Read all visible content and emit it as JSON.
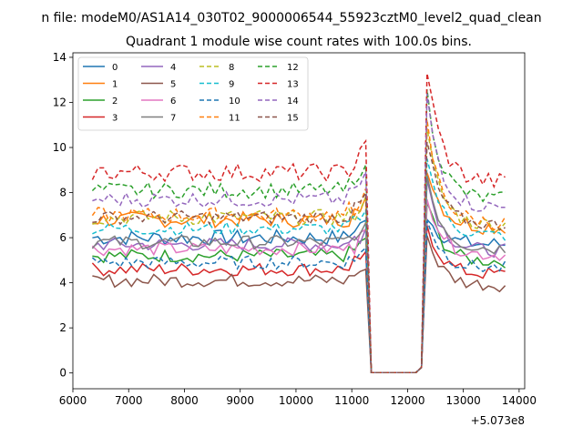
{
  "chart_data": {
    "type": "line",
    "suptitle": "n file: modeM0/AS1A14_030T02_9000006544_55923cztM0_level2_quad_clean",
    "title": "Quadrant 1 module wise count rates with 100.0s bins.",
    "x_offset_label": "+5.073e8",
    "xlabel": "",
    "ylabel": "",
    "xlim": [
      6000,
      14100
    ],
    "ylim": [
      -0.7,
      14.2
    ],
    "xticks": [
      "6000",
      "7000",
      "8000",
      "9000",
      "10000",
      "11000",
      "12000",
      "13000",
      "14000"
    ],
    "yticks": [
      "0",
      "2",
      "4",
      "6",
      "8",
      "10",
      "12",
      "14"
    ],
    "x_start": 6350,
    "x_step": 100,
    "gap": {
      "drop_at": 11350,
      "rise_at": 12250
    },
    "legend_loc": "upper left",
    "series": [
      {
        "name": "0",
        "color": "#1f77b4",
        "dash": "solid",
        "level": 6.0,
        "noise": 0.35,
        "peak": 7.0
      },
      {
        "name": "1",
        "color": "#ff7f0e",
        "dash": "solid",
        "level": 6.8,
        "noise": 0.35,
        "peak": 9.2
      },
      {
        "name": "2",
        "color": "#2ca02c",
        "dash": "solid",
        "level": 5.2,
        "noise": 0.3,
        "peak": 7.6
      },
      {
        "name": "3",
        "color": "#d62728",
        "dash": "solid",
        "level": 4.6,
        "noise": 0.3,
        "peak": 6.6
      },
      {
        "name": "4",
        "color": "#9467bd",
        "dash": "solid",
        "level": 5.7,
        "noise": 0.3,
        "peak": 8.6
      },
      {
        "name": "5",
        "color": "#8c564b",
        "dash": "solid",
        "level": 4.1,
        "noise": 0.3,
        "peak": 6.1
      },
      {
        "name": "6",
        "color": "#e377c2",
        "dash": "solid",
        "level": 5.5,
        "noise": 0.3,
        "peak": 8.0
      },
      {
        "name": "7",
        "color": "#7f7f7f",
        "dash": "solid",
        "level": 5.8,
        "noise": 0.3,
        "peak": 8.8
      },
      {
        "name": "8",
        "color": "#bcbd22",
        "dash": "dashed",
        "level": 6.9,
        "noise": 0.35,
        "peak": 10.6
      },
      {
        "name": "9",
        "color": "#17becf",
        "dash": "dashed",
        "level": 6.4,
        "noise": 0.3,
        "peak": 9.6
      },
      {
        "name": "10",
        "color": "#1f77b4",
        "dash": "dashed",
        "level": 4.9,
        "noise": 0.3,
        "peak": 6.9
      },
      {
        "name": "11",
        "color": "#ff7f0e",
        "dash": "dashed",
        "level": 7.0,
        "noise": 0.35,
        "peak": 11.0
      },
      {
        "name": "12",
        "color": "#2ca02c",
        "dash": "dashed",
        "level": 8.1,
        "noise": 0.35,
        "peak": 12.4
      },
      {
        "name": "13",
        "color": "#d62728",
        "dash": "dashed",
        "level": 8.9,
        "noise": 0.4,
        "peak": 13.5
      },
      {
        "name": "14",
        "color": "#9467bd",
        "dash": "dashed",
        "level": 7.7,
        "noise": 0.35,
        "peak": 12.2
      },
      {
        "name": "15",
        "color": "#8c564b",
        "dash": "dashed",
        "level": 6.9,
        "noise": 0.3,
        "peak": 10.2
      }
    ]
  }
}
